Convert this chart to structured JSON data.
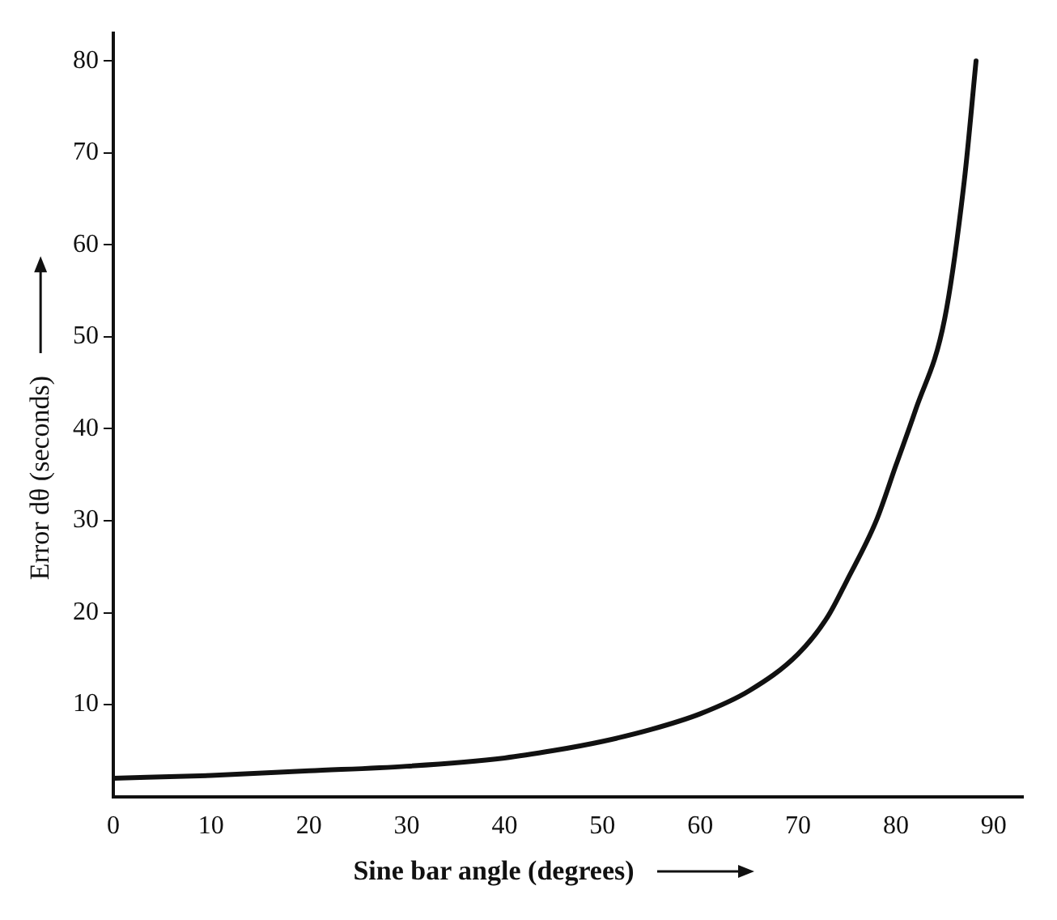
{
  "chart_data": {
    "type": "line",
    "xlabel": "Sine bar angle (degrees)",
    "ylabel": "Error dθ (seconds)",
    "x": [
      0,
      10,
      20,
      30,
      40,
      45,
      50,
      55,
      60,
      65,
      70,
      73,
      75,
      78,
      80,
      82,
      85,
      87,
      88.2
    ],
    "series": [
      {
        "color": "#111111",
        "values": [
          2,
          2.3,
          2.8,
          3.3,
          4.2,
          5,
          6,
          7.3,
          9,
          11.5,
          15.5,
          19.5,
          23.5,
          30,
          36,
          42,
          52,
          67,
          80
        ]
      }
    ],
    "xlim": [
      0,
      93
    ],
    "ylim": [
      0,
      83
    ],
    "xticks": [
      0,
      10,
      20,
      30,
      40,
      50,
      60,
      70,
      80,
      90
    ],
    "yticks": [
      10,
      20,
      30,
      40,
      50,
      60,
      70,
      80
    ],
    "grid": false,
    "legend": false,
    "marker": "none",
    "line_style": "solid"
  }
}
